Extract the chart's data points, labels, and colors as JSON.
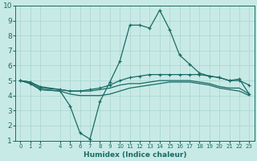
{
  "xlabel": "Humidex (Indice chaleur)",
  "bg_color": "#c8eae6",
  "grid_color": "#a8d4d0",
  "line_color": "#1a6b65",
  "xlim": [
    -0.5,
    23.5
  ],
  "ylim": [
    1,
    10
  ],
  "x_ticks": [
    0,
    1,
    2,
    4,
    5,
    6,
    7,
    8,
    9,
    10,
    11,
    12,
    13,
    14,
    15,
    16,
    17,
    18,
    19,
    20,
    21,
    22,
    23
  ],
  "y_ticks": [
    1,
    2,
    3,
    4,
    5,
    6,
    7,
    8,
    9,
    10
  ],
  "series": {
    "upper": {
      "x": [
        0,
        1,
        2,
        4,
        5,
        6,
        7,
        8,
        9,
        10,
        11,
        12,
        13,
        14,
        15,
        16,
        17,
        18,
        19,
        20,
        21,
        22,
        23
      ],
      "y": [
        5.0,
        4.8,
        4.4,
        4.3,
        3.3,
        1.5,
        1.1,
        3.6,
        4.9,
        6.3,
        8.7,
        8.7,
        8.5,
        9.7,
        8.4,
        6.7,
        6.1,
        5.5,
        5.3,
        5.2,
        5.0,
        5.1,
        4.1
      ]
    },
    "mid_upper": {
      "x": [
        0,
        1,
        2,
        4,
        5,
        6,
        7,
        8,
        9,
        10,
        11,
        12,
        13,
        14,
        15,
        16,
        17,
        18,
        19,
        20,
        21,
        22,
        23
      ],
      "y": [
        5.0,
        4.9,
        4.6,
        4.4,
        4.3,
        4.3,
        4.4,
        4.5,
        4.7,
        5.0,
        5.2,
        5.3,
        5.4,
        5.4,
        5.4,
        5.4,
        5.4,
        5.4,
        5.3,
        5.2,
        5.0,
        5.0,
        4.7
      ]
    },
    "mid_lower": {
      "x": [
        0,
        1,
        2,
        4,
        5,
        6,
        7,
        8,
        9,
        10,
        11,
        12,
        13,
        14,
        15,
        16,
        17,
        18,
        19,
        20,
        21,
        22,
        23
      ],
      "y": [
        5.0,
        4.9,
        4.5,
        4.4,
        4.3,
        4.3,
        4.3,
        4.4,
        4.5,
        4.7,
        4.8,
        4.8,
        4.9,
        5.0,
        5.0,
        5.0,
        5.0,
        4.9,
        4.8,
        4.6,
        4.5,
        4.5,
        4.1
      ]
    },
    "lower": {
      "x": [
        0,
        1,
        2,
        4,
        5,
        6,
        7,
        8,
        9,
        10,
        11,
        12,
        13,
        14,
        15,
        16,
        17,
        18,
        19,
        20,
        21,
        22,
        23
      ],
      "y": [
        5.0,
        4.8,
        4.4,
        4.3,
        4.1,
        4.0,
        4.0,
        4.0,
        4.1,
        4.3,
        4.5,
        4.6,
        4.7,
        4.8,
        4.9,
        4.9,
        4.9,
        4.8,
        4.7,
        4.5,
        4.4,
        4.3,
        4.0
      ]
    }
  }
}
